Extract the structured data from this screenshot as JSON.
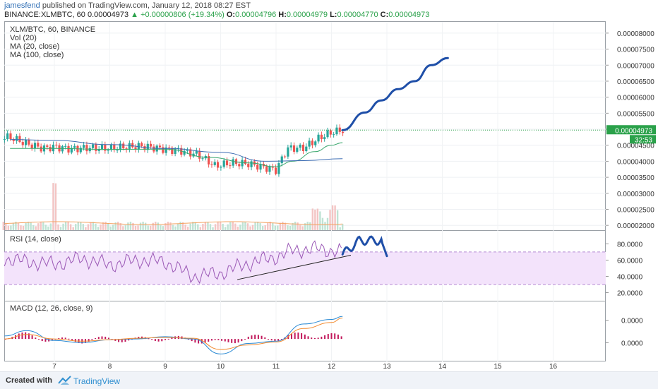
{
  "header": {
    "author": "jamesfend",
    "published_text": "published on TradingView.com, January 12, 2018 08:27 EST",
    "symbol": "BINANCE:XLMBTC, 60",
    "last": "0.00004973",
    "change": "+0.00000806 (+19.34%)",
    "open_label": "O:",
    "open": "0.00004796",
    "high_label": "H:",
    "high": "0.00004979",
    "low_label": "L:",
    "low": "0.00004770",
    "close_label": "C:",
    "close": "0.00004973"
  },
  "legend": {
    "main_title": "XLM/BTC, 60, BINANCE",
    "vol": "Vol (20)",
    "ma20": "MA (20, close)",
    "ma100": "MA (100, close)",
    "rsi": "RSI (14, close)",
    "macd": "MACD (12, 26, close, 9)"
  },
  "price_badge": "0.00004973",
  "time_badge": "32:53",
  "footer": {
    "created": "Created with",
    "brand": "TradingView"
  },
  "colors": {
    "up": "#26a69a",
    "down": "#ef5350",
    "accent": "#2f6fb5",
    "drawing": "#1f4fa8",
    "rsi_band": "#f3e3fb",
    "last_price": "#2aa14a"
  },
  "chart_data": [
    {
      "type": "candlestick",
      "pane": "price",
      "title": "XLM/BTC, 60, BINANCE",
      "x_ticks": [
        "7",
        "8",
        "9",
        "10",
        "11",
        "12",
        "13",
        "14",
        "15",
        "16"
      ],
      "y_ticks": [
        "0.00002000",
        "0.00002500",
        "0.00003000",
        "0.00003500",
        "0.00004000",
        "0.00004500",
        "0.00005000",
        "0.00005500",
        "0.00006000",
        "0.00006500",
        "0.00007000",
        "0.00007500",
        "0.00008000"
      ],
      "ylim": [
        1.85e-05,
        8.35e-05
      ],
      "close_path": [
        [
          6.2,
          4.75e-05
        ],
        [
          6.5,
          4.55e-05
        ],
        [
          6.8,
          4.4e-05
        ],
        [
          7.0,
          4.45e-05
        ],
        [
          7.3,
          4.38e-05
        ],
        [
          7.6,
          4.42e-05
        ],
        [
          8.0,
          4.4e-05
        ],
        [
          8.3,
          4.45e-05
        ],
        [
          8.6,
          4.47e-05
        ],
        [
          9.0,
          4.37e-05
        ],
        [
          9.3,
          4.32e-05
        ],
        [
          9.6,
          4.2e-05
        ],
        [
          9.9,
          3.85e-05
        ],
        [
          10.2,
          3.95e-05
        ],
        [
          10.5,
          3.92e-05
        ],
        [
          10.8,
          3.8e-05
        ],
        [
          11.0,
          3.72e-05
        ],
        [
          11.2,
          4.4e-05
        ],
        [
          11.5,
          4.42e-05
        ],
        [
          11.8,
          4.75e-05
        ],
        [
          12.0,
          4.9e-05
        ],
        [
          12.2,
          4.97e-05
        ]
      ],
      "ma20": [
        [
          6.2,
          4.4e-05
        ],
        [
          7.0,
          4.4e-05
        ],
        [
          8.0,
          4.37e-05
        ],
        [
          9.0,
          4.38e-05
        ],
        [
          9.8,
          4.12e-05
        ],
        [
          10.5,
          3.95e-05
        ],
        [
          11.0,
          3.83e-05
        ],
        [
          11.3,
          4e-05
        ],
        [
          11.7,
          4.3e-05
        ],
        [
          12.0,
          4.5e-05
        ],
        [
          12.2,
          4.58e-05
        ]
      ],
      "ma100": [
        [
          6.2,
          4.68e-05
        ],
        [
          7.0,
          4.65e-05
        ],
        [
          8.0,
          4.52e-05
        ],
        [
          9.0,
          4.4e-05
        ],
        [
          10.0,
          4.28e-05
        ],
        [
          10.8,
          4e-05
        ],
        [
          11.5,
          4.02e-05
        ],
        [
          12.2,
          4.08e-05
        ]
      ],
      "last_price": 4.973e-05,
      "projection": [
        [
          12.2,
          4.97e-05
        ],
        [
          12.6,
          5.52e-05
        ],
        [
          12.9,
          5.9e-05
        ],
        [
          13.2,
          6.25e-05
        ],
        [
          13.5,
          6.5e-05
        ],
        [
          13.8,
          7e-05
        ],
        [
          14.1,
          7.22e-05
        ]
      ]
    },
    {
      "type": "line",
      "pane": "rsi",
      "title": "RSI (14, close)",
      "y_ticks": [
        "20.0000",
        "40.0000",
        "60.0000",
        "80.0000"
      ],
      "ylim": [
        10,
        96
      ],
      "band": [
        30,
        70
      ],
      "series": [
        [
          6.1,
          62
        ],
        [
          6.5,
          58
        ],
        [
          7.0,
          55
        ],
        [
          7.5,
          62
        ],
        [
          8.0,
          54
        ],
        [
          8.5,
          60
        ],
        [
          9.0,
          58
        ],
        [
          9.5,
          40
        ],
        [
          10.0,
          44
        ],
        [
          10.5,
          56
        ],
        [
          11.0,
          64
        ],
        [
          11.3,
          72
        ],
        [
          11.7,
          74
        ],
        [
          12.0,
          72
        ],
        [
          12.2,
          70
        ]
      ],
      "trendline": [
        [
          10.3,
          36
        ],
        [
          12.35,
          66
        ]
      ],
      "projection": [
        [
          12.2,
          67
        ],
        [
          12.5,
          84
        ],
        [
          12.7,
          84
        ],
        [
          12.9,
          84
        ],
        [
          13.0,
          65
        ]
      ]
    },
    {
      "type": "line",
      "pane": "macd",
      "title": "MACD (12, 26, close, 9)",
      "y_ticks": [
        "0.0000",
        "0.0000"
      ],
      "ylim": [
        -3,
        5
      ],
      "series": [
        {
          "values": [
            [
              6.1,
              0.4
            ],
            [
              6.5,
              1.1
            ],
            [
              7.0,
              -0.2
            ],
            [
              7.5,
              -0.5
            ],
            [
              8.0,
              -0.1
            ],
            [
              8.5,
              0.0
            ],
            [
              9.0,
              0.3
            ],
            [
              9.5,
              0.0
            ],
            [
              10.0,
              -2.0
            ],
            [
              10.5,
              -0.6
            ],
            [
              11.0,
              -0.3
            ],
            [
              11.5,
              2.0
            ],
            [
              12.0,
              2.6
            ],
            [
              12.2,
              3.0
            ]
          ]
        },
        {
          "values": [
            [
              6.1,
              0.0
            ],
            [
              6.5,
              0.6
            ],
            [
              7.0,
              0.0
            ],
            [
              7.5,
              -0.3
            ],
            [
              8.0,
              -0.1
            ],
            [
              8.5,
              0.1
            ],
            [
              9.0,
              0.2
            ],
            [
              9.5,
              0.1
            ],
            [
              10.0,
              -1.4
            ],
            [
              10.5,
              -0.8
            ],
            [
              11.0,
              -0.4
            ],
            [
              11.5,
              1.4
            ],
            [
              12.0,
              2.2
            ],
            [
              12.2,
              2.8
            ]
          ]
        }
      ]
    }
  ]
}
